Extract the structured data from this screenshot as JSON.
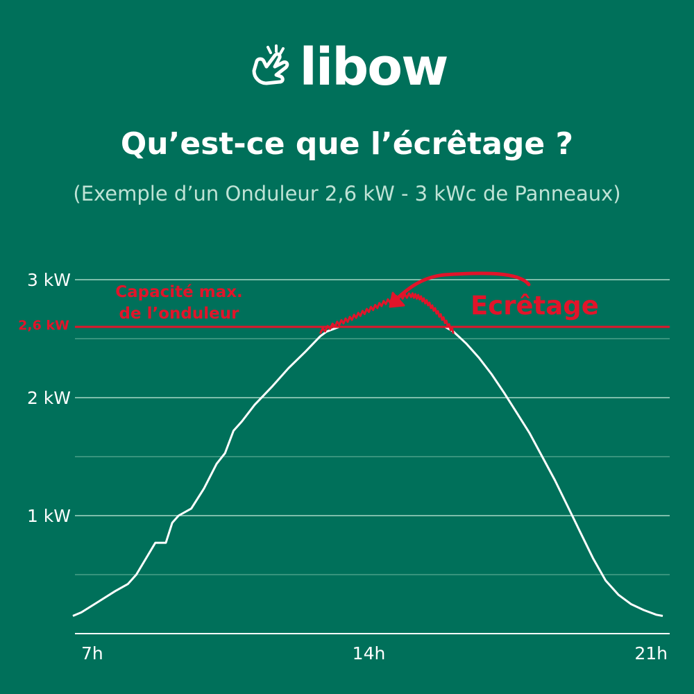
{
  "brand": {
    "name": "libow"
  },
  "header": {
    "title": "Qu’est-ce que l’écrêtage ?",
    "subtitle": "(Exemple d’un Onduleur 2,6 kW - 3 kWc de Panneaux)"
  },
  "colors": {
    "background": "#00705a",
    "curve": "#ffffff",
    "accent_red": "#e2142a",
    "subtitle": "#bfe3d6",
    "grid": "#6fb8a0"
  },
  "chart_data": {
    "type": "line",
    "x_unit": "h",
    "y_unit": "kW",
    "xlim": [
      7,
      21
    ],
    "ylim": [
      0,
      3
    ],
    "x_ticks": [
      {
        "value": 7,
        "label": "7h"
      },
      {
        "value": 14,
        "label": "14h"
      },
      {
        "value": 21,
        "label": "21h"
      }
    ],
    "y_ticks": [
      {
        "value": 3,
        "label": "3 kW"
      },
      {
        "value": 2,
        "label": "2 kW"
      },
      {
        "value": 1,
        "label": "1 kW"
      }
    ],
    "grid_lines": [
      0.5,
      1,
      1.5,
      2,
      2.5,
      3
    ],
    "grid": true,
    "series": [
      {
        "x": [
          7.0,
          7.2,
          7.6,
          8.0,
          8.3,
          8.5,
          8.7,
          8.95,
          9.2,
          9.35,
          9.5,
          9.8,
          10.1,
          10.4,
          10.6,
          10.8,
          11.0,
          11.3,
          11.7,
          12.1,
          12.5,
          12.85,
          13.0,
          13.3,
          13.6,
          13.9,
          14.2,
          14.5,
          14.8,
          15.0,
          15.2,
          15.4,
          15.6,
          15.8,
          16.0,
          16.3,
          16.6,
          16.9,
          17.2,
          17.5,
          17.8,
          18.1,
          18.4,
          18.7,
          19.0,
          19.3,
          19.6,
          19.9,
          20.2,
          20.5,
          20.8,
          20.95
        ],
        "y": [
          0.15,
          0.18,
          0.27,
          0.36,
          0.42,
          0.5,
          0.62,
          0.77,
          0.77,
          0.94,
          1.0,
          1.06,
          1.23,
          1.44,
          1.53,
          1.72,
          1.8,
          1.94,
          2.09,
          2.25,
          2.39,
          2.52,
          2.56,
          2.6,
          2.6,
          2.6,
          2.6,
          2.6,
          2.6,
          2.6,
          2.6,
          2.6,
          2.6,
          2.6,
          2.56,
          2.46,
          2.34,
          2.2,
          2.04,
          1.87,
          1.7,
          1.5,
          1.3,
          1.08,
          0.86,
          0.64,
          0.45,
          0.33,
          0.25,
          0.2,
          0.16,
          0.15
        ]
      }
    ],
    "limit": {
      "value": 2.6,
      "label": "2,6 kW",
      "annotation": [
        "Capacité max.",
        "de l’onduleur"
      ]
    },
    "clipping": {
      "label": "Ecrêtage",
      "x": [
        12.85,
        13.2,
        13.5,
        13.8,
        14.1,
        14.4,
        14.7,
        15.0,
        15.2,
        15.4,
        15.6,
        15.8,
        16.0
      ],
      "y": [
        2.56,
        2.62,
        2.66,
        2.71,
        2.76,
        2.81,
        2.85,
        2.87,
        2.85,
        2.8,
        2.73,
        2.65,
        2.56
      ]
    }
  }
}
